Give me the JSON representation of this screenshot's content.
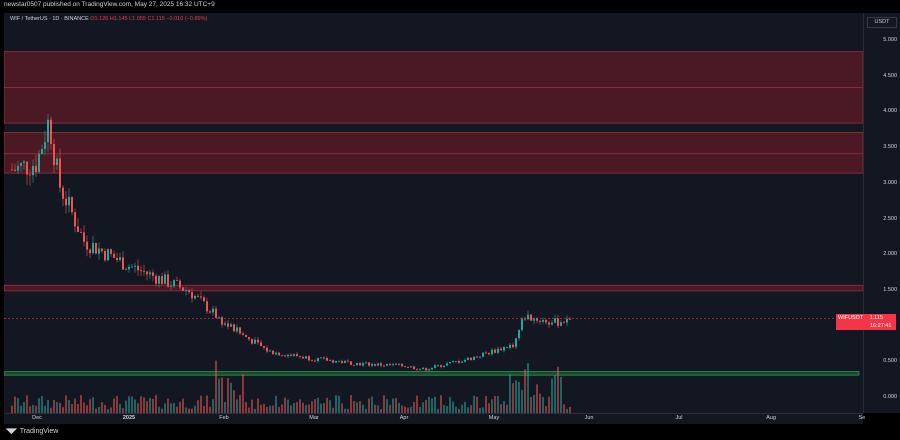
{
  "header": {
    "published_text": "newstar0507 published on TradingView.com, May 27, 2025 16:32 UTC+9"
  },
  "legend": {
    "symbol": "WIF / TetherUS · 1D · BINANCE",
    "ohlc": "O1.126 H1.145 L1.055 C1.115 −0.010 (−0.89%)"
  },
  "price_axis": {
    "currency": "USDT",
    "ticks": [
      "5.000",
      "4.500",
      "4.000",
      "3.500",
      "3.000",
      "2.500",
      "2.000",
      "1.500",
      "0.500",
      "0.000"
    ]
  },
  "time_axis": {
    "labels": [
      "Dec",
      "2025",
      "Feb",
      "Mar",
      "Apr",
      "May",
      "Jun",
      "Jul",
      "Aug",
      "Se"
    ]
  },
  "price_tag": {
    "symbol": "WIFUSDT",
    "price": "1.115",
    "countdown": "16:27:41"
  },
  "footer": {
    "brand": "TradingView"
  },
  "colors": {
    "background": "#131722",
    "up": "#26a69a",
    "down": "#ef5350",
    "resistance_zone": "#7a1c24",
    "support_zone": "#1e7a32"
  },
  "chart_data": {
    "type": "candlestick",
    "symbol": "WIFUSDT",
    "y_range": [
      0,
      5.2
    ],
    "last_price": 1.115,
    "zones": [
      {
        "kind": "resistance",
        "from": 3.85,
        "to": 4.85
      },
      {
        "kind": "resistance",
        "from": 3.15,
        "to": 3.72
      },
      {
        "kind": "resistance",
        "from": 1.5,
        "to": 1.58
      },
      {
        "kind": "support",
        "from": 0.32,
        "to": 0.37
      }
    ],
    "approx_closes": [
      {
        "date": "Nov 20",
        "close": 3.2
      },
      {
        "date": "Dec 1",
        "close": 3.3
      },
      {
        "date": "Dec 5",
        "close": 3.9
      },
      {
        "date": "Dec 10",
        "close": 3.0
      },
      {
        "date": "Dec 20",
        "close": 2.2
      },
      {
        "date": "Jan 1",
        "close": 1.85
      },
      {
        "date": "Jan 20",
        "close": 1.5
      },
      {
        "date": "Feb 1",
        "close": 1.05
      },
      {
        "date": "Feb 15",
        "close": 0.65
      },
      {
        "date": "Mar 1",
        "close": 0.55
      },
      {
        "date": "Mar 15",
        "close": 0.48
      },
      {
        "date": "Apr 1",
        "close": 0.45
      },
      {
        "date": "Apr 10",
        "close": 0.4
      },
      {
        "date": "Apr 25",
        "close": 0.55
      },
      {
        "date": "May 10",
        "close": 0.75
      },
      {
        "date": "May 12",
        "close": 1.15
      },
      {
        "date": "May 20",
        "close": 1.05
      },
      {
        "date": "May 27",
        "close": 1.115
      }
    ]
  }
}
